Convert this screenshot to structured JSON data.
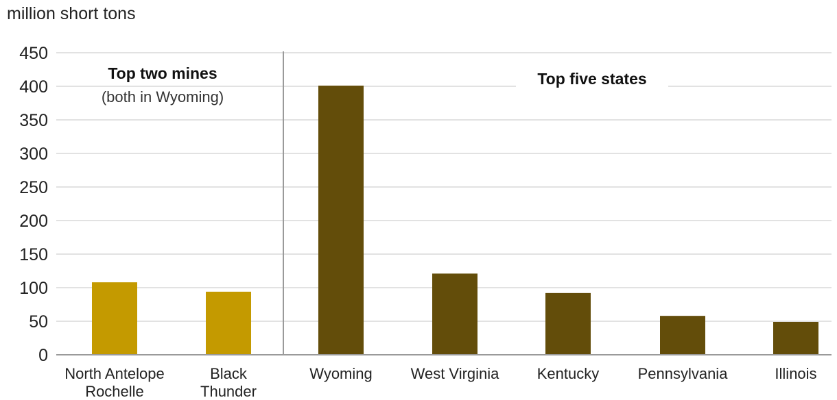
{
  "unit_label": "million short tons",
  "annotations": {
    "mines_title": "Top two mines",
    "mines_subtitle": "(both in Wyoming)",
    "states_title": "Top five states"
  },
  "colors": {
    "mines": "#C49A00",
    "states": "#634D0A",
    "grid": "#d9d9d9",
    "axis": "#9a9a9a"
  },
  "chart_data": {
    "type": "bar",
    "ylabel": "million short tons",
    "ylim": [
      0,
      450
    ],
    "yticks": [
      0,
      50,
      100,
      150,
      200,
      250,
      300,
      350,
      400,
      450
    ],
    "grid": true,
    "groups": [
      {
        "name": "Top two mines",
        "categories": [
          [
            "North Antelope",
            "Rochelle"
          ],
          [
            "Black",
            "Thunder"
          ]
        ],
        "values": [
          108,
          94
        ]
      },
      {
        "name": "Top five states",
        "categories": [
          [
            "Wyoming"
          ],
          [
            "West Virginia"
          ],
          [
            "Kentucky"
          ],
          [
            "Pennsylvania"
          ],
          [
            "Illinois"
          ]
        ],
        "values": [
          401,
          121,
          92,
          58,
          49
        ]
      }
    ]
  }
}
